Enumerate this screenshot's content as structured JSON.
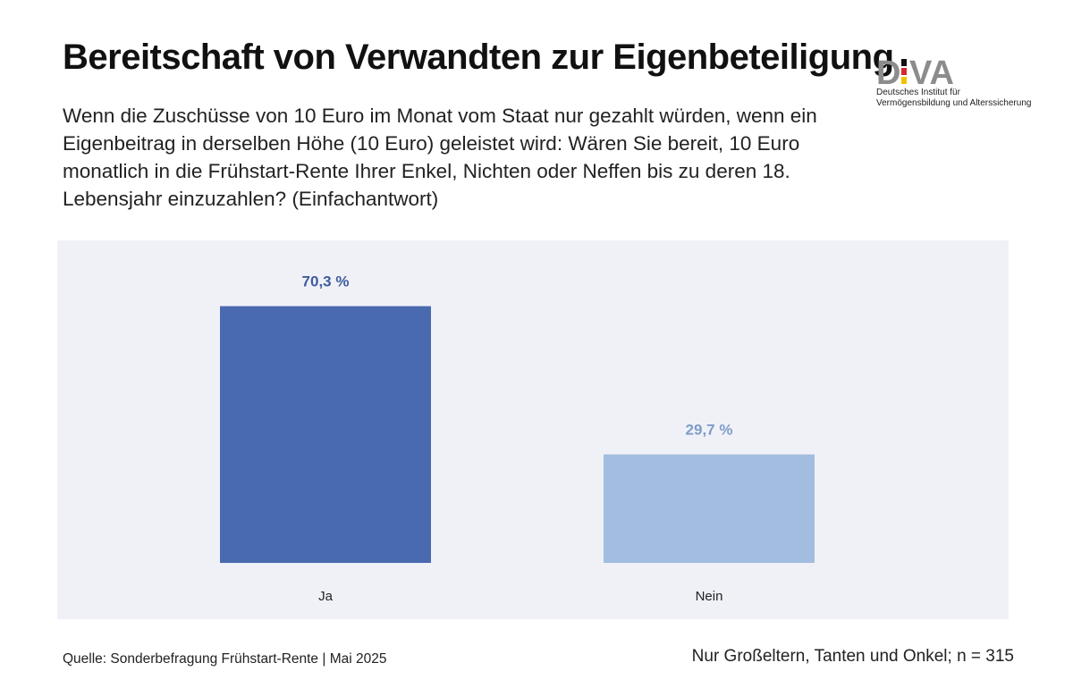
{
  "header": {
    "title": "Bereitschaft von Verwandten zur Eigenbeteiligung",
    "question": "Wenn die Zuschüsse von 10 Euro im Monat vom Staat nur gezahlt würden, wenn ein Eigenbeitrag in derselben Höhe (10 Euro) geleistet wird: Wären Sie bereit, 10 Euro monatlich in die Frühstart-Rente Ihrer Enkel, Nichten oder Neffen bis zu deren 18. Lebensjahr einzuzahlen? (Einfachantwort)"
  },
  "logo": {
    "wordmark": "DIVA",
    "line1": "Deutsches Institut für",
    "line2": "Vermögensbildung und Alterssicherung"
  },
  "chart_data": {
    "type": "bar",
    "categories": [
      "Ja",
      "Nein"
    ],
    "values": [
      70.3,
      29.7
    ],
    "value_labels": [
      "70,3 %",
      "29,7 %"
    ],
    "unit": "%",
    "ylim": [
      0,
      80
    ],
    "grid": false,
    "colors": [
      "#4a6ab0",
      "#a3bde0"
    ],
    "label_colors": [
      "#3f5c9e",
      "#7f9cc9"
    ]
  },
  "footer": {
    "source": "Quelle: Sonderbefragung Frühstart-Rente | Mai 2025",
    "sample": "Nur Großeltern, Tanten und Onkel; n = 315"
  }
}
